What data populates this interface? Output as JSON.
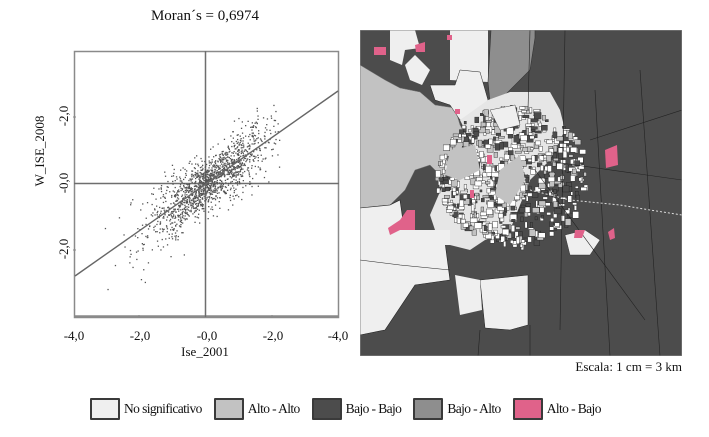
{
  "chart_data": [
    {
      "type": "scatter",
      "title": "Moran´s = 0,6974",
      "xlabel": "Ise_2001",
      "ylabel": "W_ISE_2008",
      "x_ticks": [
        "-4,0",
        "-2,0",
        "-0,0",
        "-2,0",
        "-4,0"
      ],
      "y_ticks": [
        "-2,0",
        "-0,0",
        "-2,0"
      ],
      "xlim": [
        -4,
        4
      ],
      "ylim": [
        -4,
        4
      ],
      "grid": false,
      "quadrant_lines": {
        "x": 0,
        "y": 0
      },
      "regression_line": {
        "slope": 0.6974,
        "intercept": 0,
        "from": [
          -4,
          -2.8
        ],
        "to": [
          4,
          2.8
        ]
      },
      "point_cloud": {
        "approx_count": 1500,
        "center": [
          0,
          0
        ],
        "spread_x": 0.9,
        "spread_y_about_line": 0.45,
        "x_range": [
          -3.4,
          2.2
        ]
      }
    },
    {
      "type": "map",
      "title": "",
      "legend": [
        "No significativo",
        "Alto - Alto",
        "Bajo - Bajo",
        "Bajo - Alto",
        "Alto - Bajo"
      ],
      "scale": "Escala: 1 cm = 3 km"
    }
  ],
  "title": "Moran´s = 0,6974",
  "axes": {
    "xlabel": "Ise_2001",
    "ylabel": "W_ISE_2008",
    "x_ticks": [
      "-4,0",
      "-2,0",
      "-0,0",
      "-2,0",
      "-4,0"
    ],
    "y_ticks": [
      "-2,0",
      "-0,0",
      "-2,0"
    ]
  },
  "map": {
    "scale_label": "Escala: 1 cm = 3 km",
    "colors": {
      "no_significativo": "#efefef",
      "alto_alto": "#c2c2c2",
      "bajo_bajo": "#4c4c4c",
      "bajo_alto": "#8e8e8e",
      "alto_bajo": "#e0628a"
    }
  },
  "legend": [
    {
      "label": "No significativo",
      "color": "#efefef"
    },
    {
      "label": "Alto - Alto",
      "color": "#c2c2c2"
    },
    {
      "label": "Bajo - Bajo",
      "color": "#4c4c4c"
    },
    {
      "label": "Bajo - Alto",
      "color": "#8e8e8e"
    },
    {
      "label": "Alto - Bajo",
      "color": "#e0628a"
    }
  ]
}
